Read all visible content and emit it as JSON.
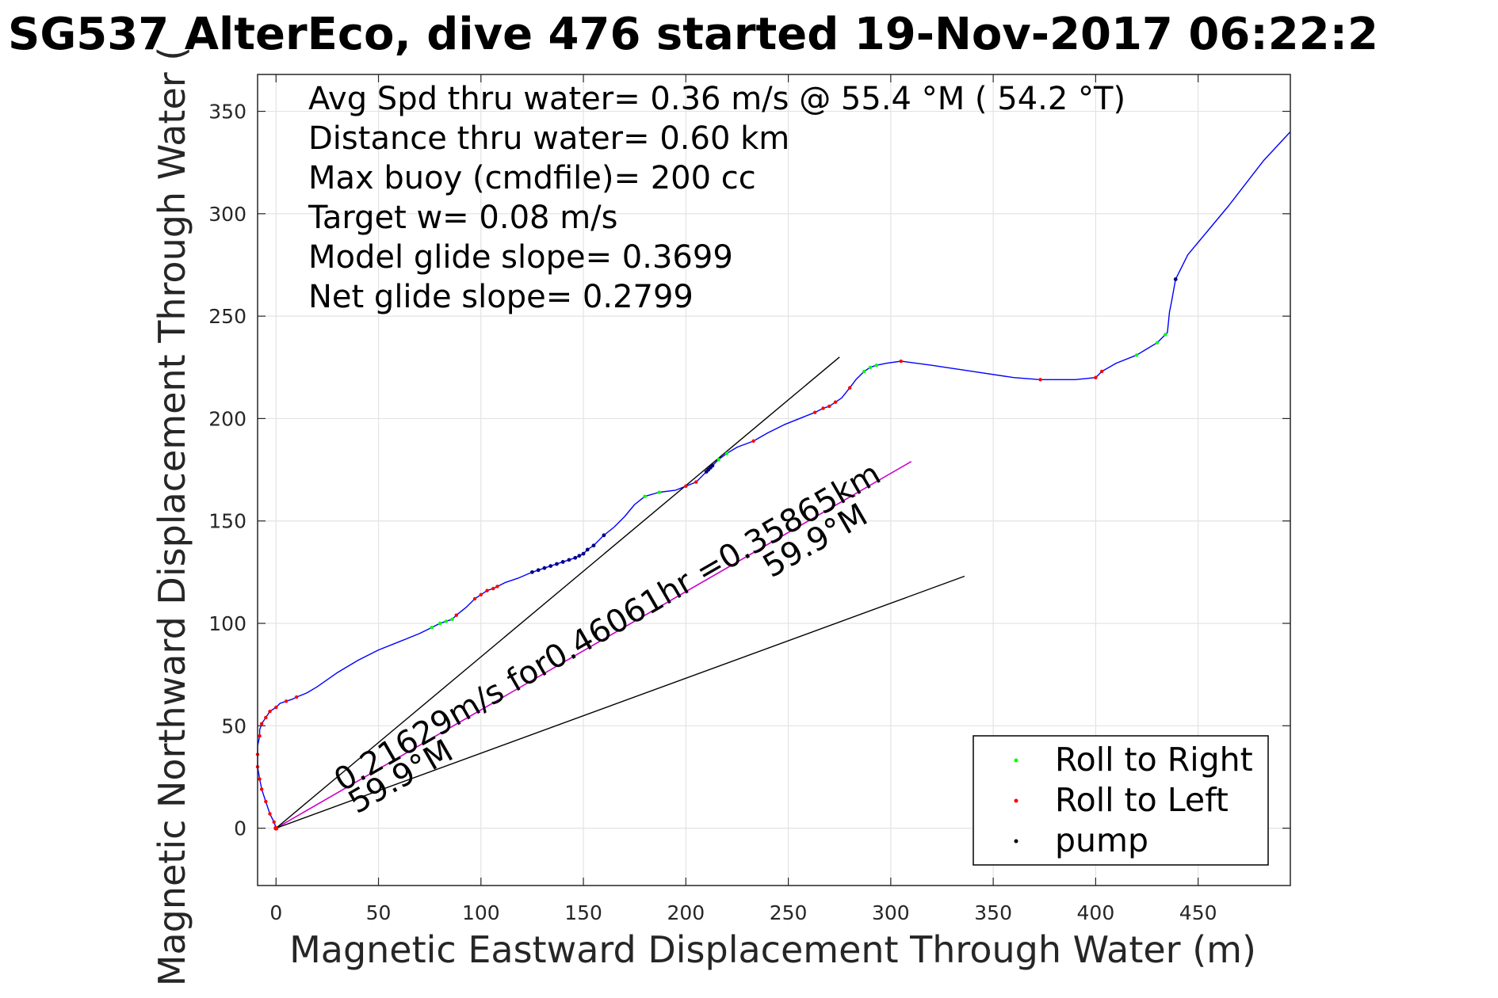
{
  "chart_data": {
    "type": "line",
    "title": "SG537 AlterEco, dive 476 started 19-Nov-2017 06:22:2",
    "xlabel": "Magnetic Eastward Displacement Through Water (m)",
    "ylabel": "Magnetic Northward Displacement Through Water (",
    "xlim": [
      -9,
      495
    ],
    "ylim": [
      -28,
      368
    ],
    "x_ticks": [
      0,
      50,
      100,
      150,
      200,
      250,
      300,
      350,
      400,
      450
    ],
    "x_tick_labels": [
      "0",
      "50",
      "100",
      "150",
      "200",
      "250",
      "300",
      "350",
      "400",
      "450"
    ],
    "y_ticks": [
      0,
      50,
      100,
      150,
      200,
      250,
      300,
      350
    ],
    "y_tick_labels": [
      "0",
      "50",
      "100",
      "150",
      "200",
      "250",
      "300",
      "350"
    ],
    "grid": true,
    "info_lines": [
      "Avg Spd thru water=  0.36 m/s @  55.4 °M ( 54.2 °T)",
      "Distance thru water=  0.60 km",
      "Max buoy (cmdfile)= 200 cc",
      "Target w= 0.08 m/s",
      "Model glide slope= 0.3699",
      "Net glide slope= 0.2799"
    ],
    "annotations": {
      "current_label": "0.21629m/s for0.46061hr =0.35865km",
      "heading_label_a": "59.9°M",
      "heading_label_b": "59.9°M"
    },
    "legend": {
      "placement": "bottom-right",
      "entries": [
        {
          "label": "Roll to Right",
          "color": "#00ff00"
        },
        {
          "label": "Roll to Left",
          "color": "#ff0000"
        },
        {
          "label": "pump",
          "color": "#000000"
        }
      ]
    },
    "colors": {
      "track": "#0000ff",
      "current": "#cc00cc",
      "reference": "#000000",
      "roll_right": "#00ff00",
      "roll_left": "#ff0000",
      "pump": "#000080",
      "grid": "#e3e3e3"
    },
    "series": [
      {
        "name": "track",
        "x": [
          0,
          -1,
          -3,
          -5,
          -7,
          -8,
          -9,
          -9,
          -9,
          -8,
          -8,
          -7,
          -5,
          -3,
          0,
          2,
          5,
          8,
          10,
          15,
          20,
          30,
          40,
          50,
          60,
          70,
          76,
          80,
          83,
          86,
          88,
          93,
          97,
          100,
          103,
          106,
          108,
          112,
          118,
          125,
          128,
          131,
          134,
          137,
          140,
          143,
          146,
          148,
          150,
          152,
          155,
          160,
          165,
          170,
          175,
          180,
          187,
          195,
          200,
          205,
          210,
          213,
          216,
          220,
          225,
          233,
          240,
          248,
          258,
          263,
          267,
          270,
          273,
          276,
          280,
          283,
          287,
          290,
          293,
          298,
          305,
          320,
          340,
          360,
          373,
          390,
          400,
          403,
          410,
          420,
          425,
          430,
          434,
          435,
          436,
          437,
          439,
          440,
          445,
          455,
          465,
          475,
          482,
          495
        ],
        "y": [
          0,
          3,
          7,
          13,
          19,
          24,
          30,
          36,
          40,
          45,
          48,
          51,
          54,
          57,
          59,
          61,
          62,
          63,
          64,
          66,
          69,
          76,
          82,
          87,
          91,
          95,
          98,
          100,
          101,
          102,
          104,
          108,
          112,
          114,
          116,
          117,
          118,
          120,
          122,
          125,
          126,
          127,
          128,
          129,
          130,
          131,
          132,
          133,
          134,
          136,
          138,
          143,
          147,
          152,
          158,
          162,
          164,
          165,
          167,
          169,
          174,
          177,
          180,
          183,
          186,
          189,
          193,
          197,
          201,
          203,
          205,
          206,
          208,
          210,
          215,
          219,
          223,
          225,
          226,
          227,
          228,
          226,
          223,
          220,
          219,
          219,
          220,
          223,
          227,
          231,
          234,
          237,
          241,
          242,
          252,
          257,
          268,
          270,
          280,
          292,
          304,
          317,
          326,
          340
        ]
      },
      {
        "name": "current",
        "x": [
          0,
          310
        ],
        "y": [
          0,
          179
        ]
      },
      {
        "name": "reference_upper",
        "x": [
          0,
          275
        ],
        "y": [
          0,
          230
        ]
      },
      {
        "name": "reference_lower",
        "x": [
          0,
          336
        ],
        "y": [
          0,
          123
        ]
      }
    ],
    "markers": {
      "roll_right": {
        "x": [
          76,
          80,
          83,
          86,
          180,
          187,
          216,
          220,
          287,
          290,
          293,
          420,
          430,
          434
        ],
        "y": [
          98,
          100,
          101,
          102,
          162,
          164,
          180,
          183,
          223,
          225,
          226,
          231,
          237,
          241
        ]
      },
      "roll_left": {
        "x": [
          0,
          -1,
          -3,
          -5,
          -7,
          -8,
          -9,
          -9,
          -8,
          -7,
          -5,
          -3,
          0,
          5,
          10,
          88,
          97,
          100,
          103,
          106,
          108,
          200,
          205,
          233,
          263,
          267,
          270,
          273,
          280,
          305,
          373,
          400,
          403
        ],
        "y": [
          0,
          3,
          7,
          13,
          19,
          24,
          30,
          36,
          45,
          51,
          54,
          57,
          59,
          62,
          64,
          104,
          112,
          114,
          116,
          117,
          118,
          167,
          169,
          189,
          203,
          205,
          206,
          208,
          215,
          228,
          219,
          220,
          223
        ]
      },
      "pump": {
        "x": [
          125,
          128,
          131,
          134,
          137,
          140,
          143,
          146,
          148,
          150,
          152,
          155,
          160,
          210,
          211,
          212,
          213,
          439
        ],
        "y": [
          125,
          126,
          127,
          128,
          129,
          130,
          131,
          132,
          133,
          134,
          136,
          138,
          143,
          174,
          175,
          176,
          177,
          268
        ]
      }
    }
  }
}
